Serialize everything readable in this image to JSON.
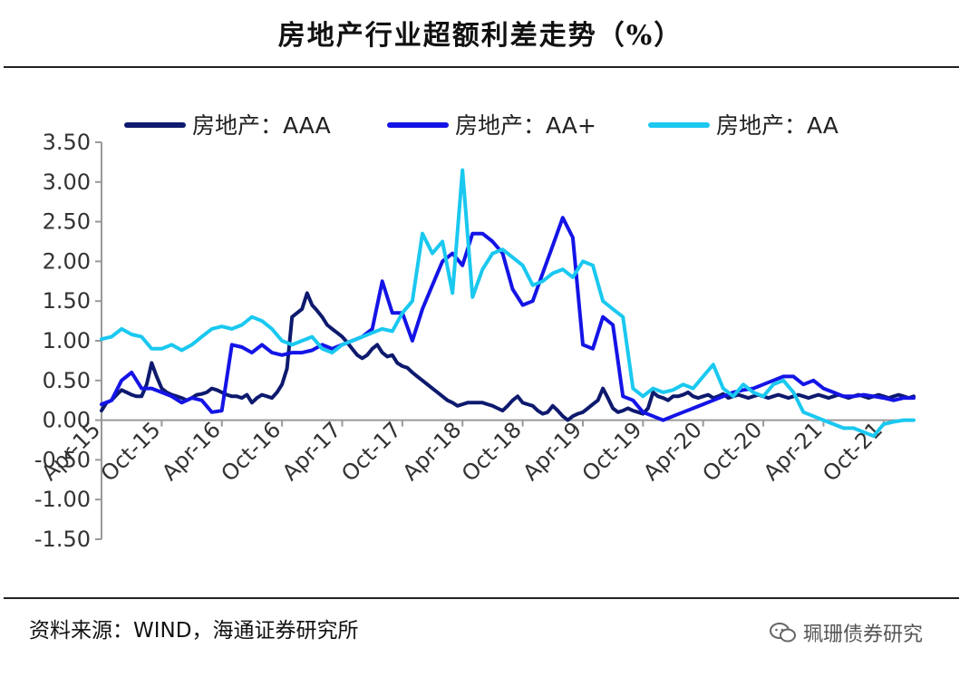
{
  "title": "房地产行业超额利差走势（%）",
  "source": "资料来源：WIND，海通证券研究所",
  "watermark": "珮珊债券研究",
  "chart_data": {
    "type": "line",
    "xlabel": "",
    "ylabel": "",
    "ylim": [
      -1.5,
      3.5
    ],
    "y_ticks": [
      "3.50",
      "3.00",
      "2.50",
      "2.00",
      "1.50",
      "1.00",
      "0.50",
      "0.00",
      "-0.50",
      "-1.00",
      "-1.50"
    ],
    "x_ticks": [
      "Apr-15",
      "Oct-15",
      "Apr-16",
      "Oct-16",
      "Apr-17",
      "Oct-17",
      "Apr-18",
      "Oct-18",
      "Apr-19",
      "Oct-19",
      "Apr-20",
      "Oct-20",
      "Apr-21",
      "Oct-21"
    ],
    "legend_position": "top",
    "grid": false,
    "series": [
      {
        "name": "房地产：AAA",
        "color": "#0d1a6e",
        "x": [
          0.0,
          0.5,
          1.0,
          1.5,
          2.0,
          2.5,
          3.0,
          3.5,
          4.0,
          4.5,
          5.0,
          5.5,
          6.0,
          6.5,
          7.0,
          7.5,
          8.0,
          8.5,
          9.0,
          9.5,
          10.0,
          10.5,
          11.0,
          11.5,
          12.0,
          12.5,
          13.0,
          13.5,
          14.0,
          14.5,
          15.0,
          15.5,
          16.0,
          16.5,
          17.0,
          17.5,
          18.0,
          18.5,
          19.0,
          19.5,
          20.0,
          20.5,
          21.0,
          21.5,
          22.0,
          22.5,
          23.0,
          23.5,
          24.0,
          24.5,
          25.0,
          25.5,
          26.0,
          26.5,
          27.0,
          27.5,
          28.0,
          28.5,
          29.0,
          29.5,
          30.0,
          30.5,
          31.0,
          31.5,
          32.0,
          32.5,
          33.0,
          33.5,
          34.0,
          34.5,
          35.0,
          35.5,
          36.0,
          36.5,
          37.0,
          37.5,
          38.0,
          38.5,
          39.0,
          39.5,
          40.0,
          40.5,
          41.0,
          41.5,
          42.0,
          42.5,
          43.0,
          43.5,
          44.0,
          44.5,
          45.0,
          45.5,
          46.0,
          46.5,
          47.0,
          47.5,
          48.0,
          48.5,
          49.0,
          49.5,
          50.0,
          50.5,
          51.0,
          51.5,
          52.0,
          52.5,
          53.0,
          53.5,
          54.0,
          54.5,
          55.0,
          55.5,
          56.0,
          56.5,
          57.0,
          57.5,
          58.0,
          58.5,
          59.0,
          59.5,
          60.0,
          60.5,
          61.0,
          61.5,
          62.0,
          62.5,
          63.0,
          63.5,
          64.0,
          64.5,
          65.0,
          65.5,
          66.0,
          66.5,
          67.0,
          67.5,
          68.0,
          68.5,
          69.0,
          69.5,
          70.0,
          70.5,
          71.0,
          71.5,
          72.0,
          72.5,
          73.0,
          73.5,
          74.0,
          74.5,
          75.0,
          75.5,
          76.0,
          76.5,
          77.0,
          77.5,
          78.0,
          78.5,
          79.0,
          79.5,
          80.0,
          80.5,
          81.0
        ],
        "values": [
          0.12,
          0.22,
          0.25,
          0.32,
          0.38,
          0.35,
          0.32,
          0.3,
          0.3,
          0.45,
          0.72,
          0.55,
          0.4,
          0.35,
          0.32,
          0.3,
          0.28,
          0.25,
          0.28,
          0.32,
          0.33,
          0.35,
          0.4,
          0.38,
          0.35,
          0.32,
          0.3,
          0.3,
          0.28,
          0.32,
          0.22,
          0.28,
          0.32,
          0.3,
          0.28,
          0.35,
          0.45,
          0.65,
          1.3,
          1.35,
          1.4,
          1.6,
          1.45,
          1.38,
          1.3,
          1.2,
          1.15,
          1.1,
          1.05,
          0.98,
          0.9,
          0.82,
          0.78,
          0.82,
          0.9,
          0.95,
          0.85,
          0.8,
          0.82,
          0.72,
          0.68,
          0.66,
          0.6,
          0.55,
          0.5,
          0.45,
          0.4,
          0.35,
          0.3,
          0.25,
          0.22,
          0.18,
          0.2,
          0.22,
          0.22,
          0.22,
          0.22,
          0.2,
          0.18,
          0.15,
          0.12,
          0.18,
          0.25,
          0.3,
          0.22,
          0.2,
          0.18,
          0.12,
          0.08,
          0.1,
          0.18,
          0.12,
          0.05,
          0.0,
          0.05,
          0.08,
          0.1,
          0.15,
          0.2,
          0.25,
          0.4,
          0.28,
          0.15,
          0.1,
          0.12,
          0.15,
          0.12,
          0.1,
          0.08,
          0.15,
          0.35,
          0.3,
          0.28,
          0.25,
          0.3,
          0.3,
          0.32,
          0.35,
          0.3,
          0.28,
          0.3,
          0.32,
          0.28,
          0.3,
          0.33,
          0.28,
          0.3,
          0.32,
          0.3,
          0.28,
          0.3,
          0.32,
          0.3,
          0.28,
          0.3,
          0.32,
          0.3,
          0.28,
          0.3,
          0.32,
          0.3,
          0.28,
          0.3,
          0.32,
          0.3,
          0.28,
          0.3,
          0.32,
          0.3,
          0.28,
          0.3,
          0.32,
          0.3,
          0.28,
          0.3,
          0.32,
          0.3,
          0.28,
          0.3,
          0.32,
          0.3,
          0.28,
          0.3
        ]
      },
      {
        "name": "房地产：AA+",
        "color": "#1414e6",
        "x": [
          0.0,
          1.0,
          2.0,
          3.0,
          4.0,
          5.0,
          6.0,
          7.0,
          8.0,
          9.0,
          10.0,
          11.0,
          12.0,
          13.0,
          14.0,
          15.0,
          16.0,
          17.0,
          18.0,
          19.0,
          20.0,
          21.0,
          22.0,
          23.0,
          24.0,
          25.0,
          26.0,
          27.0,
          28.0,
          29.0,
          30.0,
          31.0,
          32.0,
          33.0,
          34.0,
          35.0,
          36.0,
          37.0,
          38.0,
          39.0,
          40.0,
          41.0,
          42.0,
          43.0,
          44.0,
          45.0,
          46.0,
          47.0,
          48.0,
          49.0,
          50.0,
          51.0,
          52.0,
          53.0,
          54.0,
          55.0,
          56.0,
          57.0,
          58.0,
          59.0,
          60.0,
          61.0,
          62.0,
          63.0,
          64.0,
          65.0,
          66.0,
          67.0,
          68.0,
          69.0,
          70.0,
          71.0,
          72.0,
          73.0,
          74.0,
          75.0,
          76.0,
          77.0,
          78.0,
          79.0,
          80.0,
          81.0
        ],
        "values": [
          0.2,
          0.25,
          0.5,
          0.6,
          0.4,
          0.4,
          0.35,
          0.3,
          0.22,
          0.28,
          0.25,
          0.1,
          0.12,
          0.95,
          0.92,
          0.85,
          0.95,
          0.85,
          0.82,
          0.85,
          0.85,
          0.88,
          0.95,
          0.9,
          0.95,
          1.0,
          1.05,
          1.15,
          1.75,
          1.35,
          1.35,
          1.0,
          1.4,
          1.7,
          2.0,
          2.1,
          1.95,
          2.35,
          2.35,
          2.25,
          2.1,
          1.65,
          1.45,
          1.5,
          1.85,
          2.2,
          2.55,
          2.3,
          0.95,
          0.9,
          1.3,
          1.2,
          0.3,
          0.25,
          0.1,
          0.05,
          0.0,
          0.05,
          0.1,
          0.15,
          0.2,
          0.25,
          0.3,
          0.35,
          0.38,
          0.4,
          0.45,
          0.5,
          0.55,
          0.55,
          0.45,
          0.5,
          0.4,
          0.35,
          0.3,
          0.3,
          0.32,
          0.3,
          0.28,
          0.25,
          0.28,
          0.28
        ]
      },
      {
        "name": "房地产：AA",
        "color": "#1ac8f0",
        "x": [
          0.0,
          1.0,
          2.0,
          3.0,
          4.0,
          5.0,
          6.0,
          7.0,
          8.0,
          9.0,
          10.0,
          11.0,
          12.0,
          13.0,
          14.0,
          15.0,
          16.0,
          17.0,
          18.0,
          19.0,
          20.0,
          21.0,
          22.0,
          23.0,
          24.0,
          25.0,
          26.0,
          27.0,
          28.0,
          29.0,
          30.0,
          31.0,
          32.0,
          33.0,
          34.0,
          35.0,
          36.0,
          37.0,
          38.0,
          39.0,
          40.0,
          41.0,
          42.0,
          43.0,
          44.0,
          45.0,
          46.0,
          47.0,
          48.0,
          49.0,
          50.0,
          51.0,
          52.0,
          53.0,
          54.0,
          55.0,
          56.0,
          57.0,
          58.0,
          59.0,
          60.0,
          61.0,
          62.0,
          63.0,
          64.0,
          65.0,
          66.0,
          67.0,
          68.0,
          69.0,
          70.0,
          71.0,
          72.0,
          73.0,
          74.0,
          75.0,
          76.0,
          77.0,
          78.0,
          79.0,
          80.0,
          81.0
        ],
        "values": [
          1.02,
          1.05,
          1.15,
          1.08,
          1.05,
          0.9,
          0.9,
          0.95,
          0.88,
          0.95,
          1.05,
          1.15,
          1.18,
          1.15,
          1.2,
          1.3,
          1.25,
          1.15,
          1.0,
          0.95,
          1.0,
          1.05,
          0.9,
          0.85,
          0.95,
          1.0,
          1.05,
          1.1,
          1.15,
          1.12,
          1.35,
          1.5,
          2.35,
          2.1,
          2.25,
          1.6,
          3.15,
          1.55,
          1.9,
          2.1,
          2.15,
          2.05,
          1.95,
          1.7,
          1.75,
          1.85,
          1.9,
          1.8,
          2.0,
          1.95,
          1.5,
          1.4,
          1.3,
          0.4,
          0.3,
          0.4,
          0.35,
          0.38,
          0.45,
          0.4,
          0.55,
          0.7,
          0.4,
          0.3,
          0.45,
          0.35,
          0.3,
          0.45,
          0.5,
          0.35,
          0.1,
          0.05,
          0.0,
          -0.05,
          -0.1,
          -0.1,
          -0.15,
          -0.2,
          -0.05,
          -0.02,
          0.0,
          0.0
        ]
      }
    ]
  }
}
